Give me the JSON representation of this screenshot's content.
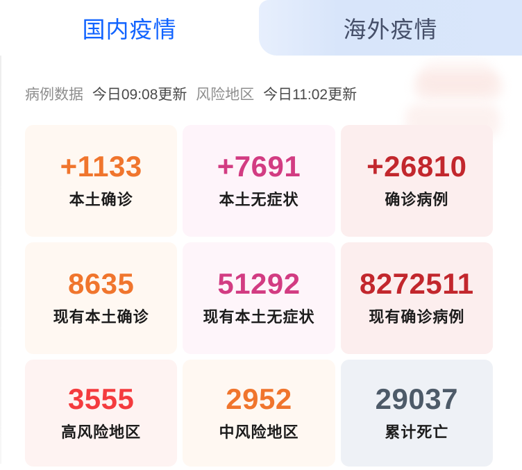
{
  "tabs": [
    {
      "label": "国内疫情",
      "active": true
    },
    {
      "label": "海外疫情",
      "active": false
    }
  ],
  "status_bar": {
    "case_data_label": "病例数据",
    "case_data_time": "今日09:08更新",
    "risk_area_label": "风险地区",
    "risk_area_time": "今日11:02更新"
  },
  "stats": [
    {
      "value": "+1133",
      "label": "本土确诊",
      "value_color": "#F0752D",
      "bg_color": "#FFF8F2"
    },
    {
      "value": "+7691",
      "label": "本土无症状",
      "value_color": "#D23C82",
      "bg_color": "#FEF4FA"
    },
    {
      "value": "+26810",
      "label": "确诊病例",
      "value_color": "#C2272D",
      "bg_color": "#FCEEEE"
    },
    {
      "value": "8635",
      "label": "现有本土确诊",
      "value_color": "#F0752D",
      "bg_color": "#FFF8F2"
    },
    {
      "value": "51292",
      "label": "现有本土无症状",
      "value_color": "#D23C82",
      "bg_color": "#FEF5FA"
    },
    {
      "value": "8272511",
      "label": "现有确诊病例",
      "value_color": "#C2272D",
      "bg_color": "#FCEEEE"
    },
    {
      "value": "3555",
      "label": "高风险地区",
      "value_color": "#F43B3E",
      "bg_color": "#FEF3F2"
    },
    {
      "value": "2952",
      "label": "中风险地区",
      "value_color": "#F0752D",
      "bg_color": "#FFF8F2"
    },
    {
      "value": "29037",
      "label": "累计死亡",
      "value_color": "#4D5A68",
      "bg_color": "#EEF1F6"
    }
  ],
  "colors": {
    "active_tab_text": "#1163FF",
    "inactive_tab_text": "#454F69",
    "inactive_tab_bg": "#D9E6FB"
  }
}
